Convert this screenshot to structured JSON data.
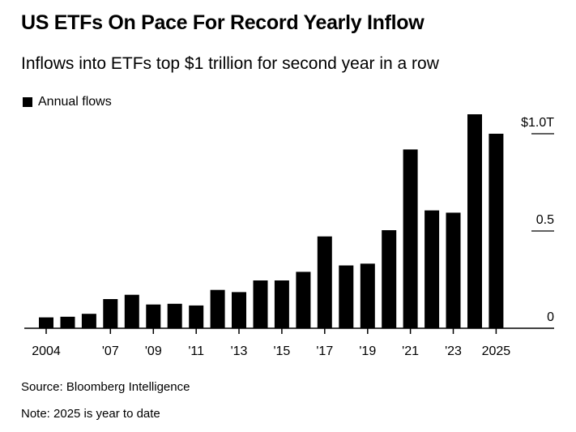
{
  "header": {
    "title": "US ETFs On Pace For Record Yearly Inflow",
    "subtitle": "Inflows into ETFs top $1 trillion for second year in a row"
  },
  "legend": {
    "label": "Annual flows"
  },
  "footer": {
    "source": "Source: Bloomberg Intelligence",
    "note": "Note: 2025 is year to date"
  },
  "chart_data": {
    "type": "bar",
    "title": "US ETFs On Pace For Record Yearly Inflow",
    "subtitle": "Inflows into ETFs top $1 trillion for second year in a row",
    "xlabel": "",
    "ylabel": "",
    "units": "trillions of US dollars",
    "categories": [
      "2004",
      "2005",
      "2006",
      "2007",
      "2008",
      "2009",
      "2010",
      "2011",
      "2012",
      "2013",
      "2014",
      "2015",
      "2016",
      "2017",
      "2018",
      "2019",
      "2020",
      "2021",
      "2022",
      "2023",
      "2024",
      "2025"
    ],
    "series": [
      {
        "name": "Annual flows",
        "color": "#000000",
        "values": [
          0.056,
          0.059,
          0.074,
          0.15,
          0.172,
          0.122,
          0.126,
          0.117,
          0.197,
          0.186,
          0.246,
          0.246,
          0.29,
          0.472,
          0.323,
          0.332,
          0.504,
          0.919,
          0.606,
          0.594,
          1.1,
          1.0
        ]
      }
    ],
    "xtick_labels": [
      {
        "category": "2004",
        "label": "2004"
      },
      {
        "category": "2007",
        "label": "'07"
      },
      {
        "category": "2009",
        "label": "'09"
      },
      {
        "category": "2011",
        "label": "'11"
      },
      {
        "category": "2013",
        "label": "'13"
      },
      {
        "category": "2015",
        "label": "'15"
      },
      {
        "category": "2017",
        "label": "'17"
      },
      {
        "category": "2019",
        "label": "'19"
      },
      {
        "category": "2021",
        "label": "'21"
      },
      {
        "category": "2023",
        "label": "'23"
      },
      {
        "category": "2025",
        "label": "2025"
      }
    ],
    "yticks": [
      {
        "value": 0,
        "label": "0"
      },
      {
        "value": 0.5,
        "label": "0.5"
      },
      {
        "value": 1.0,
        "label": "$1.0T"
      }
    ],
    "ylim": [
      0,
      1.1
    ],
    "grid": false,
    "legend_position": "top-left",
    "y_axis_position": "right"
  }
}
